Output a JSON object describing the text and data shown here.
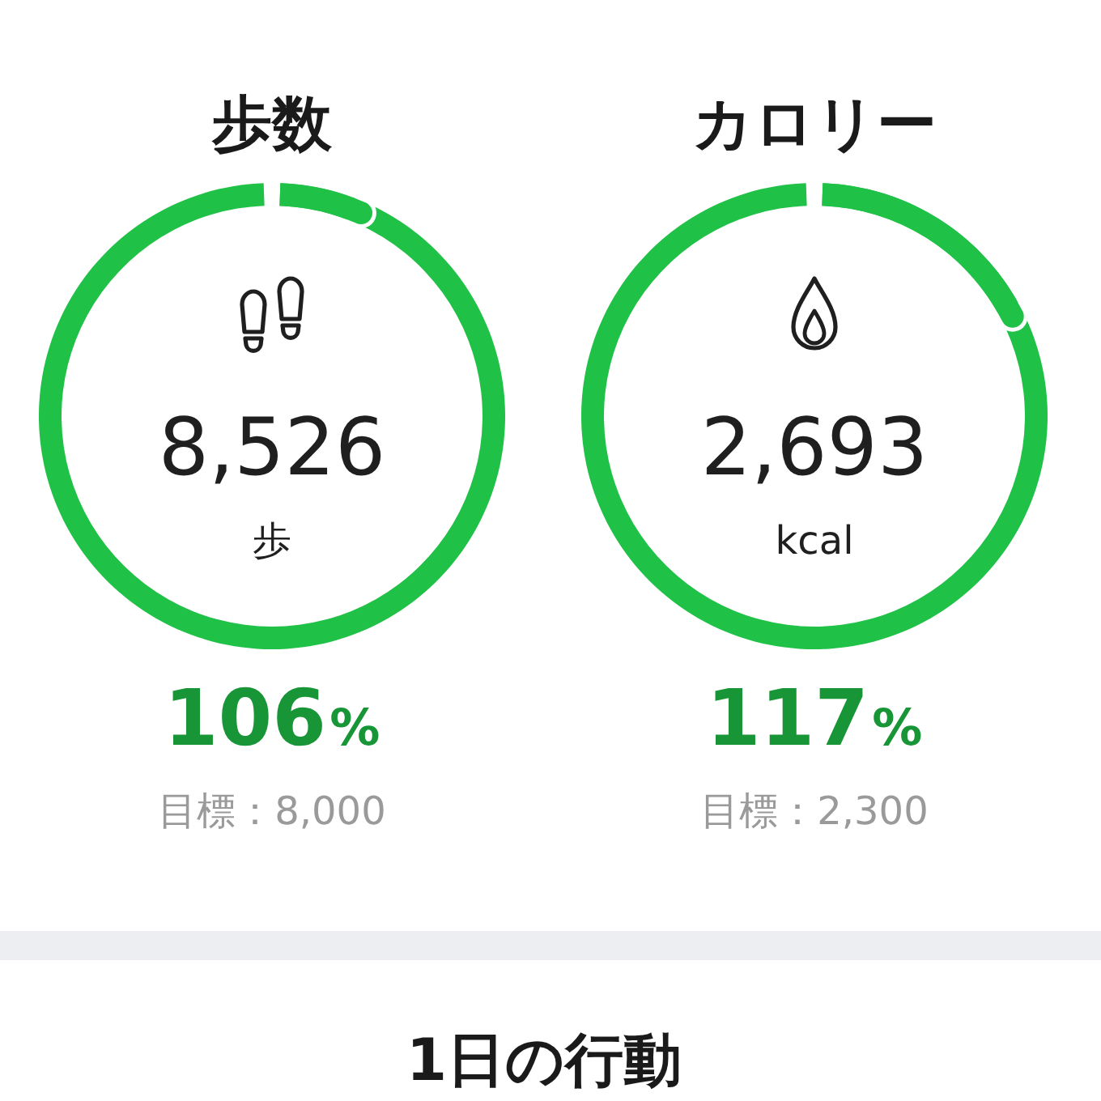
{
  "chart_data": [
    {
      "type": "other",
      "title": "歩数",
      "values": [
        106
      ],
      "value_labels": [
        "106%"
      ],
      "color": "#1fc146",
      "annotations": [
        "8,526",
        "歩",
        "目標：8,000"
      ]
    },
    {
      "type": "other",
      "title": "カロリー",
      "values": [
        117
      ],
      "value_labels": [
        "117%"
      ],
      "color": "#1fc146",
      "annotations": [
        "2,693",
        "kcal",
        "目標：2,300"
      ]
    },
    {
      "type": "other",
      "title": "1日の行動"
    }
  ]
}
